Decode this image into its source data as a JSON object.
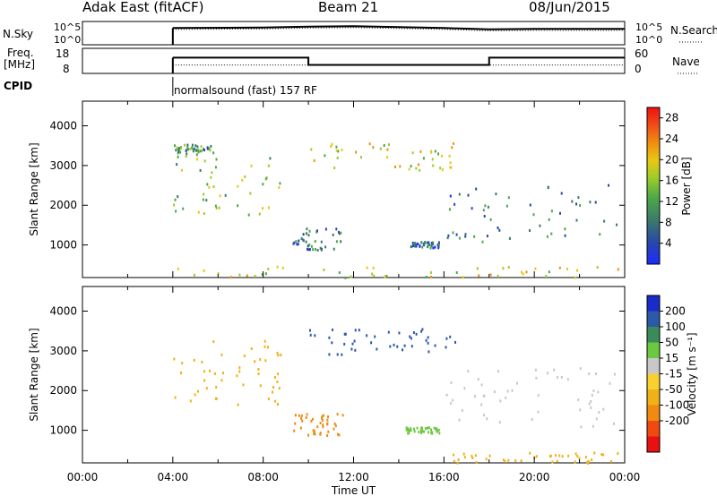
{
  "header": {
    "radar": "Adak East (fitACF)",
    "beam": "Beam 21",
    "date": "08/Jun/2015"
  },
  "noise_panel": {
    "left_label": "N.Sky",
    "left_ticks": [
      "10^5",
      "10^0"
    ],
    "right_label": "N.Search",
    "right_ticks": [
      "10^5",
      "10^0"
    ]
  },
  "freq_panel": {
    "left_label_1": "Freq.",
    "left_label_2": "[MHz]",
    "left_ticks": [
      "18",
      "8"
    ],
    "right_label": "Nave",
    "right_ticks": [
      "60",
      "0"
    ]
  },
  "cpid": {
    "label": "CPID",
    "text": "normalsound (fast) 157 RF"
  },
  "colors": {
    "power": [
      "#1a2cff",
      "#2848a8",
      "#3c7a6a",
      "#4aa84a",
      "#9ccc28",
      "#e8c814",
      "#f09010",
      "#f05018",
      "#f01010"
    ],
    "velocity": [
      "#e81010",
      "#f04a10",
      "#f08a10",
      "#f0b018",
      "#f8d030",
      "#c8c8c8",
      "#6cc840",
      "#3a8a5a",
      "#2a5aa8",
      "#1a2cc8"
    ],
    "noise_trace": "#000000"
  },
  "chart_data": [
    {
      "type": "line",
      "name": "noise",
      "x": [
        "04:00",
        "08:00",
        "10:00",
        "12:00",
        "16:00",
        "18:00",
        "20:00",
        "22:00",
        "00:00"
      ],
      "series": [
        {
          "name": "N.Sky",
          "values": [
            3.6,
            3.7,
            3.9,
            4.0,
            3.6,
            3.3,
            3.4,
            3.4,
            3.4
          ]
        },
        {
          "name": "N.Search",
          "values": [
            3.3,
            3.4,
            3.6,
            3.7,
            3.3,
            3.0,
            3.1,
            3.1,
            3.1
          ]
        }
      ],
      "ylim": [
        0,
        5
      ],
      "ytick_labels": [
        "10^0",
        "10^5"
      ],
      "ylabel": "N.Sky",
      "y2label": "N.Search"
    },
    {
      "type": "line",
      "name": "frequency",
      "segments": [
        {
          "start": "04:00",
          "end": "10:00",
          "freq_mhz": 14.3
        },
        {
          "start": "10:00",
          "end": "18:00",
          "freq_mhz": 11.4
        },
        {
          "start": "18:00",
          "end": "00:00",
          "freq_mhz": 14.3
        }
      ],
      "nave": 20,
      "ylim": [
        8,
        18
      ],
      "y2lim": [
        0,
        60
      ],
      "ylabel": "Freq. [MHz]",
      "y2label": "Nave"
    },
    {
      "type": "heatmap",
      "name": "power",
      "xlabel": "Time UT",
      "ylabel": "Slant Range [km]",
      "xlim_hours": [
        0,
        24
      ],
      "xtick_labels": [
        "00:00",
        "04:00",
        "08:00",
        "12:00",
        "16:00",
        "20:00",
        "00:00"
      ],
      "ylim": [
        180,
        4620
      ],
      "ytick_labels": [
        "1000",
        "2000",
        "3000",
        "4000"
      ],
      "colorbar": {
        "label": "Power [dB]",
        "range": [
          0,
          30
        ],
        "ticks": [
          "4",
          "8",
          "12",
          "16",
          "20",
          "24",
          "28"
        ]
      },
      "regions": [
        {
          "t0": 4.0,
          "t1": 8.8,
          "r0": 1650,
          "r1": 3350,
          "value": 14,
          "desc": "band"
        },
        {
          "t0": 4.0,
          "t1": 5.8,
          "r0": 3350,
          "r1": 3550,
          "value": 10
        },
        {
          "t0": 9.3,
          "t1": 11.5,
          "r0": 900,
          "r1": 1450,
          "value": 8
        },
        {
          "t0": 14.3,
          "t1": 15.8,
          "r0": 950,
          "r1": 1100,
          "value": 7
        },
        {
          "t0": 16.0,
          "t1": 23.8,
          "r0": 1100,
          "r1": 2600,
          "value": 8
        },
        {
          "t0": 4.0,
          "t1": 24.0,
          "r0": 200,
          "r1": 480,
          "value": 16
        },
        {
          "t0": 10.0,
          "t1": 16.5,
          "r0": 2900,
          "r1": 3600,
          "value": 17
        }
      ]
    },
    {
      "type": "heatmap",
      "name": "velocity",
      "xlabel": "Time UT",
      "ylabel": "Slant Range [km]",
      "xlim_hours": [
        0,
        24
      ],
      "xtick_labels": [
        "00:00",
        "04:00",
        "08:00",
        "12:00",
        "16:00",
        "20:00",
        "00:00"
      ],
      "ylim": [
        180,
        4620
      ],
      "ytick_labels": [
        "1000",
        "2000",
        "3000",
        "4000"
      ],
      "colorbar": {
        "label": "Velocity [m s⁻¹]",
        "ticks": [
          "200",
          "100",
          "50",
          "15",
          "-15",
          "-50",
          "-100",
          "-200"
        ]
      },
      "regions": [
        {
          "t0": 4.0,
          "t1": 8.8,
          "r0": 1650,
          "r1": 3350,
          "value": -30
        },
        {
          "t0": 9.3,
          "t1": 11.5,
          "r0": 900,
          "r1": 1450,
          "value": -60
        },
        {
          "t0": 14.3,
          "t1": 15.8,
          "r0": 950,
          "r1": 1100,
          "value": 40
        },
        {
          "t0": 16.0,
          "t1": 23.8,
          "r0": 1100,
          "r1": 2600,
          "value": 0
        },
        {
          "t0": 16.0,
          "t1": 24.0,
          "r0": 200,
          "r1": 480,
          "value": -40
        },
        {
          "t0": 10.0,
          "t1": 16.5,
          "r0": 2900,
          "r1": 3600,
          "value": 120
        }
      ]
    }
  ]
}
